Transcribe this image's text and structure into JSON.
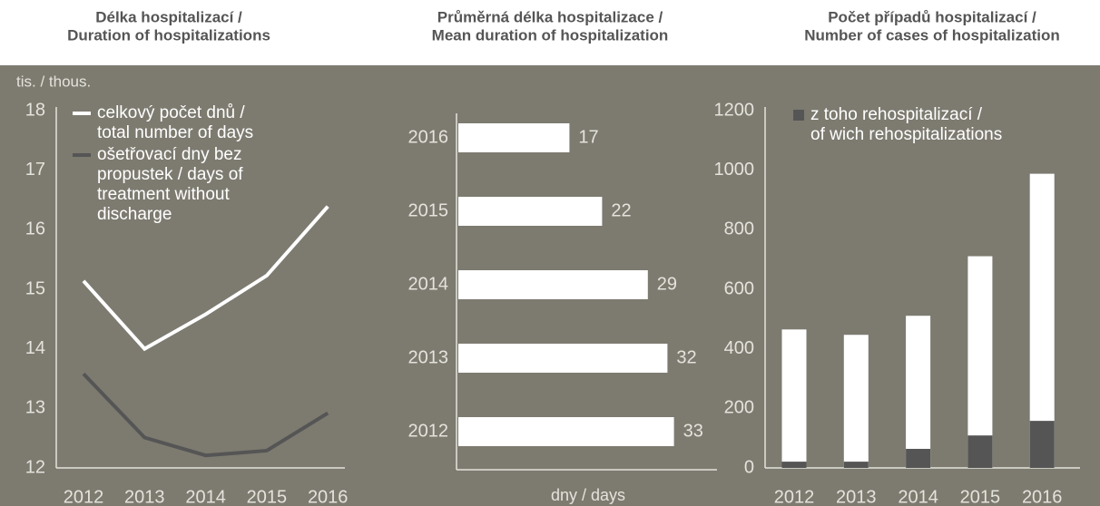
{
  "chart_data": [
    {
      "type": "line",
      "title": [
        "Délka hospitalizací /",
        "Duration of hospitalizations"
      ],
      "y_label": "tis. / thous.",
      "x": [
        "2012",
        "2013",
        "2014",
        "2015",
        "2016"
      ],
      "ylim": [
        12,
        18
      ],
      "yticks": [
        12,
        13,
        14,
        15,
        16,
        17,
        18
      ],
      "series": [
        {
          "name": [
            "celkový počet dnů /",
            "total number of days"
          ],
          "color": "#ffffff",
          "values": [
            15.14,
            14.0,
            14.58,
            15.23,
            16.39
          ]
        },
        {
          "name": [
            "ošetřovací dny bez",
            "propustek / days of",
            "treatment without",
            "discharge"
          ],
          "color": "#555555",
          "values": [
            13.58,
            12.51,
            12.21,
            12.29,
            12.92
          ]
        }
      ]
    },
    {
      "type": "barh",
      "title": [
        "Průměrná délka hospitalizace /",
        "Mean duration of hospitalization"
      ],
      "x_label": "dny / days",
      "categories": [
        "2016",
        "2015",
        "2014",
        "2013",
        "2012"
      ],
      "values": [
        17,
        22,
        29,
        32,
        33
      ],
      "color": "#ffffff"
    },
    {
      "type": "bar",
      "title": [
        "Počet případů hospitalizací /",
        "Number of cases of hospitalization"
      ],
      "categories": [
        "2012",
        "2013",
        "2014",
        "2015",
        "2016"
      ],
      "ylim": [
        0,
        1200
      ],
      "yticks": [
        0,
        200,
        400,
        600,
        800,
        1000,
        1200
      ],
      "series": [
        {
          "color": "#ffffff",
          "values": [
            465,
            447,
            511,
            711,
            988
          ]
        },
        {
          "name": [
            "z toho rehospitalizací /",
            "of wich rehospitalizations"
          ],
          "color": "#555555",
          "values": [
            21,
            21,
            64,
            109,
            158
          ]
        }
      ]
    }
  ]
}
